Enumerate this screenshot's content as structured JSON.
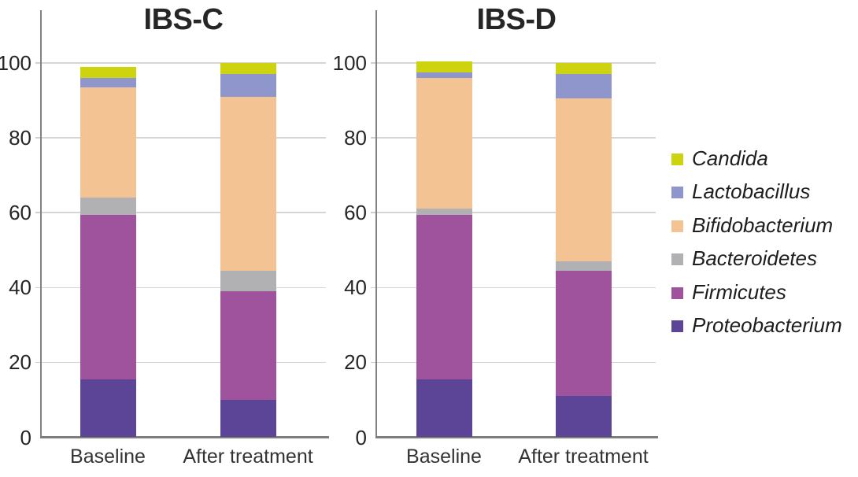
{
  "figure": {
    "background": "#ffffff",
    "axis_color": "#828282",
    "gridline_color": "#d5d5d5",
    "text_color": "#262626"
  },
  "chart_data": {
    "type": "bar",
    "stacked": true,
    "unit": "percent",
    "ylim": [
      0,
      100
    ],
    "yticks": [
      0,
      20,
      40,
      60,
      80,
      100
    ],
    "grid": "horizontal",
    "legend_position": "right",
    "stack_order_bottom_to_top": [
      "Proteobacterium",
      "Firmicutes",
      "Bacteroidetes",
      "Bifidobacterium",
      "Lactobacillus",
      "Candida"
    ],
    "series_colors": {
      "Candida": "#cdd30f",
      "Lactobacillus": "#8e96cb",
      "Bifidobacterium": "#f4c394",
      "Bacteroidetes": "#b1b1b3",
      "Firmicutes": "#a0539d",
      "Proteobacterium": "#5c4496"
    },
    "panels": [
      {
        "title": "IBS-C",
        "categories": [
          "Baseline",
          "After treatment"
        ],
        "series": [
          {
            "name": "Proteobacterium",
            "values": [
              15.5,
              10
            ]
          },
          {
            "name": "Firmicutes",
            "values": [
              44,
              29
            ]
          },
          {
            "name": "Bacteroidetes",
            "values": [
              4.5,
              5.5
            ]
          },
          {
            "name": "Bifidobacterium",
            "values": [
              29.5,
              46.5
            ]
          },
          {
            "name": "Lactobacillus",
            "values": [
              2.5,
              6
            ]
          },
          {
            "name": "Candida",
            "values": [
              3,
              3
            ]
          }
        ]
      },
      {
        "title": "IBS-D",
        "categories": [
          "Baseline",
          "After treatment"
        ],
        "series": [
          {
            "name": "Proteobacterium",
            "values": [
              15.5,
              11
            ]
          },
          {
            "name": "Firmicutes",
            "values": [
              44,
              33.5
            ]
          },
          {
            "name": "Bacteroidetes",
            "values": [
              1.5,
              2.5
            ]
          },
          {
            "name": "Bifidobacterium",
            "values": [
              35,
              43.5
            ]
          },
          {
            "name": "Lactobacillus",
            "values": [
              1.5,
              6.5
            ]
          },
          {
            "name": "Candida",
            "values": [
              3,
              3
            ]
          }
        ]
      }
    ],
    "legend": [
      {
        "label": "Candida",
        "color": "#cdd30f"
      },
      {
        "label": "Lactobacillus",
        "color": "#8e96cb"
      },
      {
        "label": "Bifidobacterium",
        "color": "#f4c394"
      },
      {
        "label": "Bacteroidetes",
        "color": "#b1b1b3"
      },
      {
        "label": "Firmicutes",
        "color": "#a0539d"
      },
      {
        "label": "Proteobacterium",
        "color": "#5c4496"
      }
    ]
  }
}
